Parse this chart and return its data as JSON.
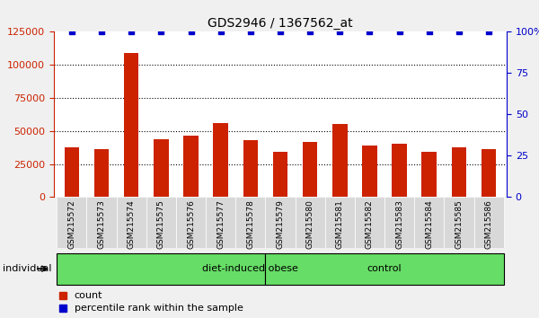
{
  "title": "GDS2946 / 1367562_at",
  "samples": [
    "GSM215572",
    "GSM215573",
    "GSM215574",
    "GSM215575",
    "GSM215576",
    "GSM215577",
    "GSM215578",
    "GSM215579",
    "GSM215580",
    "GSM215581",
    "GSM215582",
    "GSM215583",
    "GSM215584",
    "GSM215585",
    "GSM215586"
  ],
  "counts": [
    38000,
    36000,
    109000,
    44000,
    46500,
    56000,
    43000,
    34000,
    42000,
    55000,
    39000,
    40500,
    34000,
    38000,
    36500
  ],
  "percentile_ranks": [
    100,
    100,
    100,
    100,
    100,
    100,
    100,
    100,
    100,
    100,
    100,
    100,
    100,
    100,
    100
  ],
  "bar_color": "#cc2200",
  "dot_color": "#0000cc",
  "ylim_left": [
    0,
    125000
  ],
  "ylim_right": [
    0,
    100
  ],
  "yticks_left": [
    0,
    25000,
    50000,
    75000,
    100000,
    125000
  ],
  "yticks_right": [
    0,
    25,
    50,
    75,
    100
  ],
  "groups": [
    {
      "label": "diet-induced obese",
      "start": 0,
      "end": 7,
      "color": "#66dd66"
    },
    {
      "label": "control",
      "start": 7,
      "end": 15,
      "color": "#66dd66"
    }
  ],
  "group_separator": 7,
  "legend_count_label": "count",
  "legend_percentile_label": "percentile rank within the sample",
  "individual_label": "individual",
  "background_color": "#f0f0f0",
  "plot_bg_color": "#ffffff",
  "grid_color": "#000000",
  "tick_color_left": "#cc2200",
  "tick_color_right": "#0000cc"
}
